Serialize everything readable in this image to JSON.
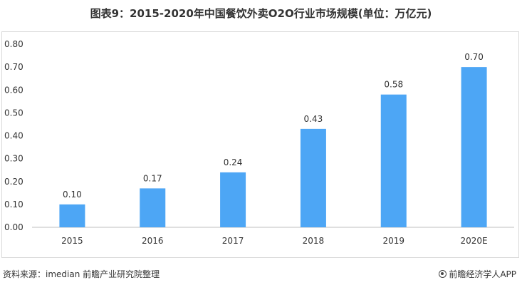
{
  "header": {
    "title": "图表9：2015-2020年中国餐饮外卖O2O行业市场规模(单位：万亿元)"
  },
  "footer": {
    "source": "资料来源：imedian 前瞻产业研究院整理",
    "brand": "前瞻经济学人APP"
  },
  "colors": {
    "bar": "#4da6f5",
    "axis": "#bfbfbf",
    "text": "#333333"
  },
  "chart_data": {
    "type": "bar",
    "categories": [
      "2015",
      "2016",
      "2017",
      "2018",
      "2019",
      "2020E"
    ],
    "values": [
      0.1,
      0.17,
      0.24,
      0.43,
      0.58,
      0.7
    ],
    "data_labels": [
      "0.10",
      "0.17",
      "0.24",
      "0.43",
      "0.58",
      "0.70"
    ],
    "yticks": [
      "0.00",
      "0.10",
      "0.20",
      "0.30",
      "0.40",
      "0.50",
      "0.60",
      "0.70",
      "0.80"
    ],
    "ylim": [
      0,
      0.8
    ],
    "grid": false,
    "legend": "none"
  }
}
